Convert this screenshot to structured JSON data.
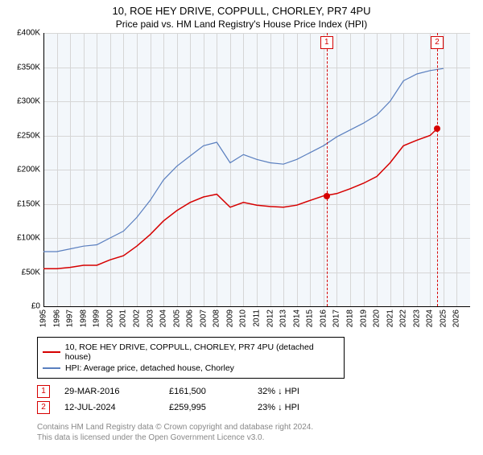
{
  "title": "10, ROE HEY DRIVE, COPPULL, CHORLEY, PR7 4PU",
  "subtitle": "Price paid vs. HM Land Registry's House Price Index (HPI)",
  "chart": {
    "type": "line",
    "background_area": "#fafdff",
    "background_plot": "#f3f7fb",
    "grid_color": "#d6d6d6",
    "axis_color": "#000000",
    "xlim": [
      1995,
      2027
    ],
    "x_ticks": [
      1995,
      1996,
      1997,
      1998,
      1999,
      2000,
      2001,
      2002,
      2003,
      2004,
      2005,
      2006,
      2007,
      2008,
      2009,
      2010,
      2011,
      2012,
      2013,
      2014,
      2015,
      2016,
      2017,
      2018,
      2019,
      2020,
      2021,
      2022,
      2023,
      2024,
      2025,
      2026
    ],
    "ylim": [
      0,
      400000
    ],
    "y_ticks": [
      0,
      50000,
      100000,
      150000,
      200000,
      250000,
      300000,
      350000,
      400000
    ],
    "y_tick_labels": [
      "£0",
      "£50K",
      "£100K",
      "£150K",
      "£200K",
      "£250K",
      "£300K",
      "£350K",
      "£400K"
    ],
    "series": [
      {
        "name": "property",
        "label": "10, ROE HEY DRIVE, COPPULL, CHORLEY, PR7 4PU (detached house)",
        "color": "#d60000",
        "line_width": 1.5,
        "points": [
          [
            1995,
            55000
          ],
          [
            1996,
            55000
          ],
          [
            1997,
            57000
          ],
          [
            1998,
            60000
          ],
          [
            1999,
            60000
          ],
          [
            2000,
            68000
          ],
          [
            2001,
            74000
          ],
          [
            2002,
            88000
          ],
          [
            2003,
            105000
          ],
          [
            2004,
            125000
          ],
          [
            2005,
            140000
          ],
          [
            2006,
            152000
          ],
          [
            2007,
            160000
          ],
          [
            2008,
            164000
          ],
          [
            2009,
            145000
          ],
          [
            2010,
            152000
          ],
          [
            2011,
            148000
          ],
          [
            2012,
            146000
          ],
          [
            2013,
            145000
          ],
          [
            2014,
            148000
          ],
          [
            2015,
            155000
          ],
          [
            2016,
            161500
          ],
          [
            2017,
            165000
          ],
          [
            2018,
            172000
          ],
          [
            2019,
            180000
          ],
          [
            2020,
            190000
          ],
          [
            2021,
            210000
          ],
          [
            2022,
            235000
          ],
          [
            2023,
            243000
          ],
          [
            2024,
            250000
          ],
          [
            2024.53,
            259995
          ]
        ]
      },
      {
        "name": "hpi",
        "label": "HPI: Average price, detached house, Chorley",
        "color": "#5a7fbf",
        "line_width": 1.2,
        "points": [
          [
            1995,
            80000
          ],
          [
            1996,
            80000
          ],
          [
            1997,
            84000
          ],
          [
            1998,
            88000
          ],
          [
            1999,
            90000
          ],
          [
            2000,
            100000
          ],
          [
            2001,
            110000
          ],
          [
            2002,
            130000
          ],
          [
            2003,
            155000
          ],
          [
            2004,
            185000
          ],
          [
            2005,
            205000
          ],
          [
            2006,
            220000
          ],
          [
            2007,
            235000
          ],
          [
            2008,
            240000
          ],
          [
            2009,
            210000
          ],
          [
            2010,
            222000
          ],
          [
            2011,
            215000
          ],
          [
            2012,
            210000
          ],
          [
            2013,
            208000
          ],
          [
            2014,
            215000
          ],
          [
            2015,
            225000
          ],
          [
            2016,
            235000
          ],
          [
            2017,
            248000
          ],
          [
            2018,
            258000
          ],
          [
            2019,
            268000
          ],
          [
            2020,
            280000
          ],
          [
            2021,
            300000
          ],
          [
            2022,
            330000
          ],
          [
            2023,
            340000
          ],
          [
            2024,
            345000
          ],
          [
            2025,
            348000
          ]
        ]
      }
    ],
    "reference_lines": [
      {
        "id": "1",
        "x": 2016.24,
        "y": 161500,
        "color": "#d60000"
      },
      {
        "id": "2",
        "x": 2024.53,
        "y": 259995,
        "color": "#d60000"
      }
    ]
  },
  "legend": {
    "border_color": "#000000",
    "items": [
      {
        "color": "#d60000",
        "label": "10, ROE HEY DRIVE, COPPULL, CHORLEY, PR7 4PU (detached house)"
      },
      {
        "color": "#5a7fbf",
        "label": "HPI: Average price, detached house, Chorley"
      }
    ]
  },
  "annotations": [
    {
      "id": "1",
      "date": "29-MAR-2016",
      "price": "£161,500",
      "pct": "32% ↓ HPI",
      "border_color": "#d60000"
    },
    {
      "id": "2",
      "date": "12-JUL-2024",
      "price": "£259,995",
      "pct": "23% ↓ HPI",
      "border_color": "#d60000"
    }
  ],
  "footer": {
    "line1": "Contains HM Land Registry data © Crown copyright and database right 2024.",
    "line2": "This data is licensed under the Open Government Licence v3.0."
  }
}
